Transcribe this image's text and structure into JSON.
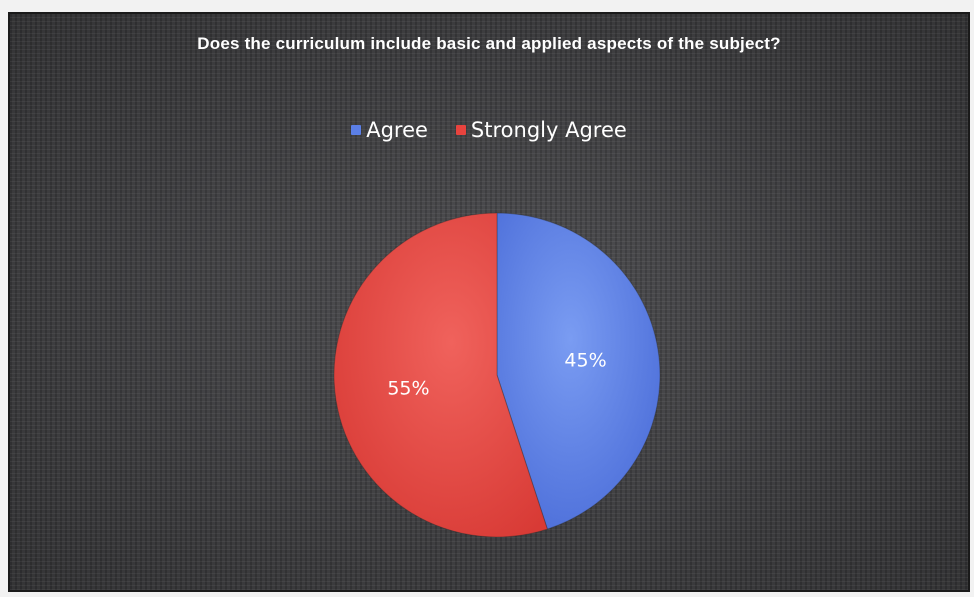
{
  "chart_data": {
    "type": "pie",
    "title": "Does the curriculum include basic and applied aspects of the subject?",
    "categories": [
      "Agree",
      "Strongly Agree"
    ],
    "values": [
      45,
      55
    ],
    "labels": [
      "45%",
      "55%"
    ],
    "colors": [
      "#5b7fe6",
      "#e8433e"
    ],
    "legend_position": "top"
  }
}
